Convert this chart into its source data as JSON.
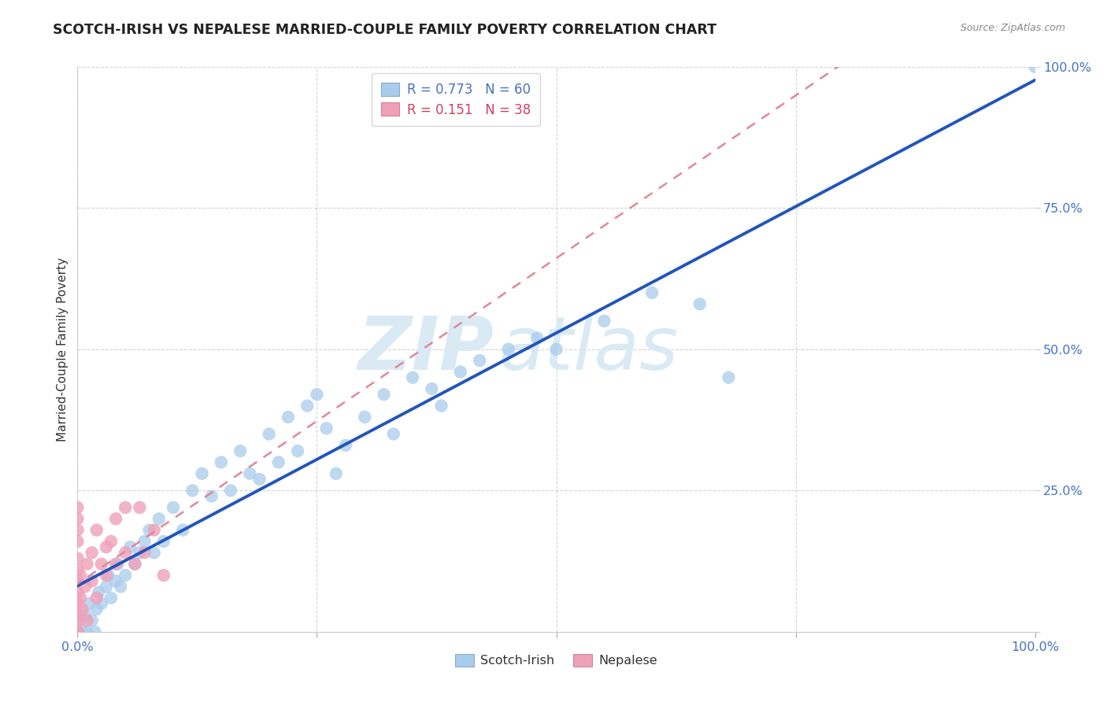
{
  "title": "SCOTCH-IRISH VS NEPALESE MARRIED-COUPLE FAMILY POVERTY CORRELATION CHART",
  "source": "Source: ZipAtlas.com",
  "ylabel": "Married-Couple Family Poverty",
  "watermark_line1": "ZIP",
  "watermark_line2": "atlas",
  "scotch_irish_R": 0.773,
  "scotch_irish_N": 60,
  "nepalese_R": 0.151,
  "nepalese_N": 38,
  "scotch_irish_color": "#a8ccec",
  "nepalese_color": "#f0a0b8",
  "scotch_irish_line_color": "#2255bb",
  "nepalese_line_color": "#e08898",
  "tick_label_color": "#4472c4",
  "grid_color": "#d4d4d4",
  "background_color": "#ffffff",
  "watermark_color": "#daeaf5",
  "scotch_irish_x": [
    0.2,
    0.5,
    0.8,
    1.0,
    1.2,
    1.5,
    1.8,
    2.0,
    2.2,
    2.5,
    3.0,
    3.2,
    3.5,
    4.0,
    4.2,
    4.5,
    5.0,
    5.5,
    6.0,
    6.5,
    7.0,
    7.5,
    8.0,
    8.5,
    9.0,
    10.0,
    11.0,
    12.0,
    13.0,
    14.0,
    15.0,
    16.0,
    17.0,
    18.0,
    19.0,
    20.0,
    21.0,
    22.0,
    23.0,
    24.0,
    25.0,
    26.0,
    27.0,
    28.0,
    30.0,
    32.0,
    33.0,
    35.0,
    37.0,
    38.0,
    40.0,
    42.0,
    45.0,
    48.0,
    50.0,
    55.0,
    60.0,
    65.0,
    68.0,
    100.0
  ],
  "scotch_irish_y": [
    2.0,
    0.0,
    3.0,
    0.0,
    5.0,
    2.0,
    0.0,
    4.0,
    7.0,
    5.0,
    8.0,
    10.0,
    6.0,
    9.0,
    12.0,
    8.0,
    10.0,
    15.0,
    12.0,
    14.0,
    16.0,
    18.0,
    14.0,
    20.0,
    16.0,
    22.0,
    18.0,
    25.0,
    28.0,
    24.0,
    30.0,
    25.0,
    32.0,
    28.0,
    27.0,
    35.0,
    30.0,
    38.0,
    32.0,
    40.0,
    42.0,
    36.0,
    28.0,
    33.0,
    38.0,
    42.0,
    35.0,
    45.0,
    43.0,
    40.0,
    46.0,
    48.0,
    50.0,
    52.0,
    50.0,
    55.0,
    60.0,
    58.0,
    45.0,
    100.0
  ],
  "nepalese_x": [
    0.0,
    0.0,
    0.0,
    0.0,
    0.0,
    0.0,
    0.0,
    0.0,
    0.0,
    0.0,
    0.0,
    0.0,
    0.0,
    0.0,
    0.0,
    0.3,
    0.3,
    0.5,
    0.8,
    1.0,
    1.0,
    1.5,
    1.5,
    2.0,
    2.0,
    2.5,
    3.0,
    3.0,
    3.5,
    4.0,
    4.0,
    5.0,
    5.0,
    6.0,
    6.5,
    7.0,
    8.0,
    9.0
  ],
  "nepalese_y": [
    0.0,
    0.0,
    0.0,
    0.0,
    2.0,
    3.0,
    5.0,
    7.0,
    9.0,
    11.0,
    13.0,
    16.0,
    18.0,
    20.0,
    22.0,
    6.0,
    10.0,
    4.0,
    8.0,
    2.0,
    12.0,
    9.0,
    14.0,
    6.0,
    18.0,
    12.0,
    10.0,
    15.0,
    16.0,
    12.0,
    20.0,
    14.0,
    22.0,
    12.0,
    22.0,
    14.0,
    18.0,
    10.0
  ]
}
